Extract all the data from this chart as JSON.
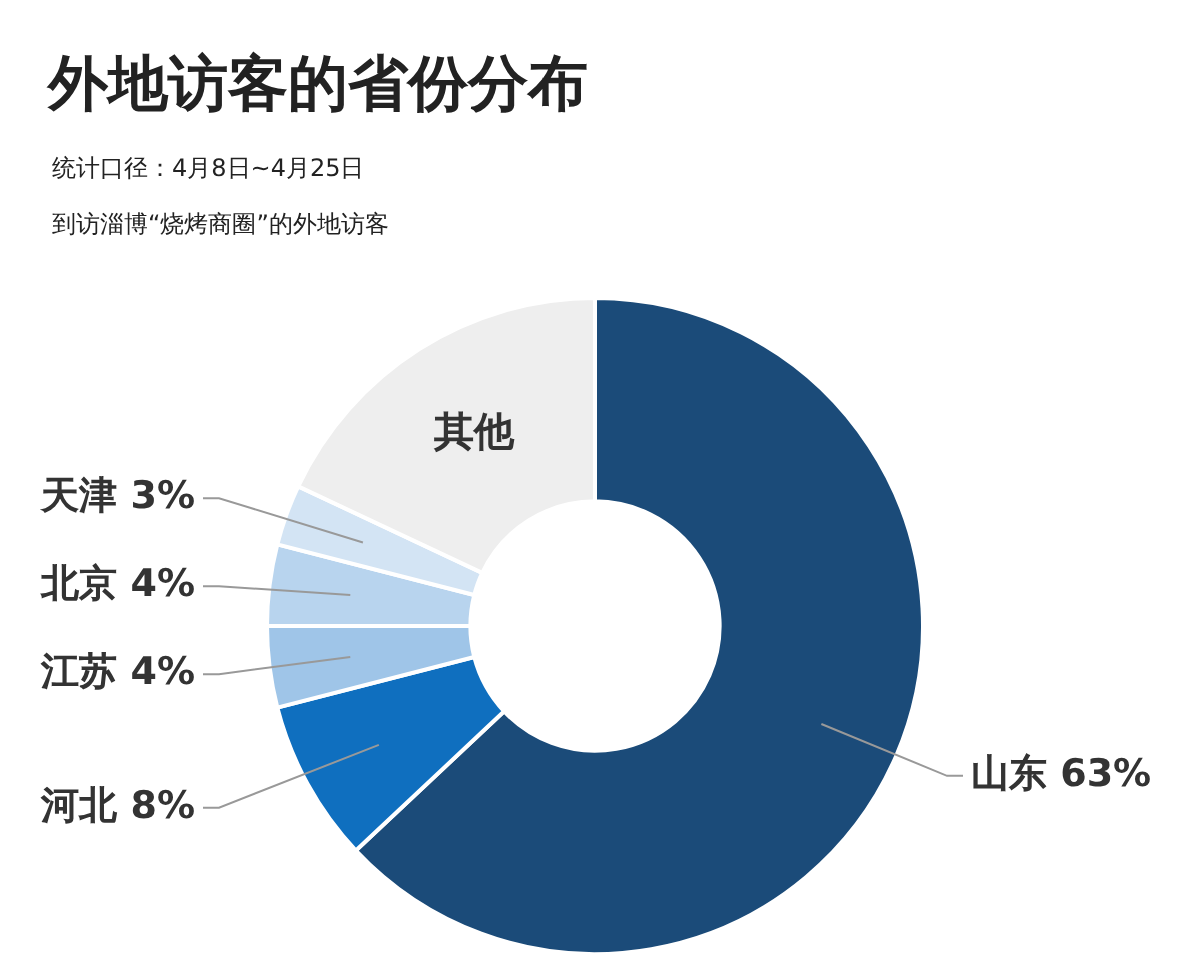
{
  "chart_data": {
    "type": "donut",
    "title": "外地访客的省份分布",
    "subtitle": "统计口径：4月8日~4月25日",
    "annotations": [
      "到访淄博“烧烤商圈”的外地访客"
    ],
    "categories": [
      "山东",
      "河北",
      "江苏",
      "北京",
      "天津",
      "其他"
    ],
    "values": [
      63,
      8,
      4,
      4,
      3,
      18
    ],
    "value_labels": [
      "63%",
      "8%",
      "4%",
      "4%",
      "3%",
      null
    ],
    "colors": [
      "#1b4b79",
      "#0f6fbf",
      "#9fc5e8",
      "#b8d4ee",
      "#d3e4f4",
      "#eeeeee"
    ]
  }
}
